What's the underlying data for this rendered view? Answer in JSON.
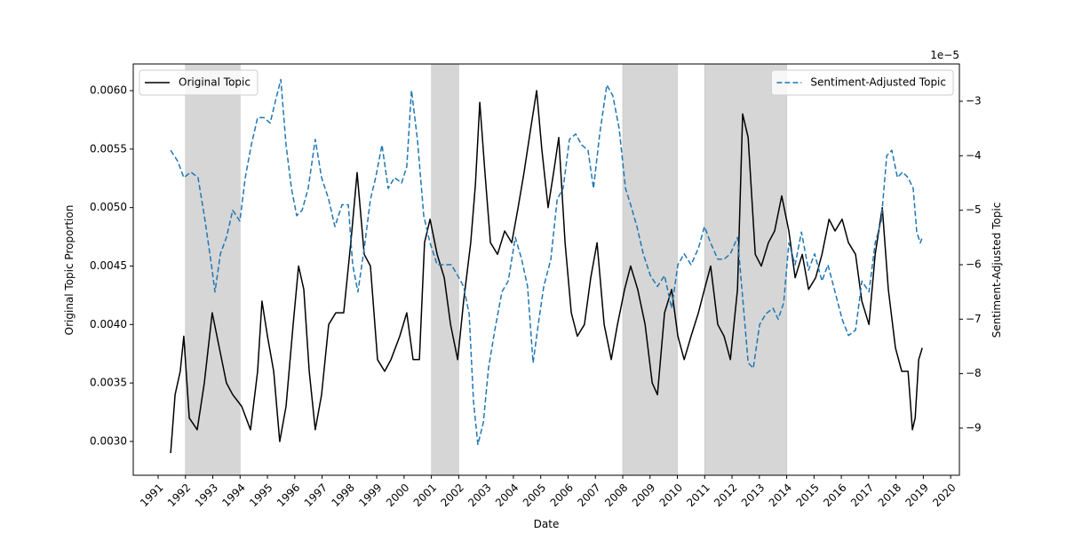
{
  "chart_data": {
    "type": "line",
    "x_label": "Date",
    "y_label": "Original Topic Proportion",
    "y2_label": "Sentiment-Adjusted Topic",
    "y2_offset_label": "1e−5",
    "xlim": [
      1990.09,
      2020.32
    ],
    "xticks": [
      1991,
      1992,
      1993,
      1994,
      1995,
      1996,
      1997,
      1998,
      1999,
      2000,
      2001,
      2002,
      2003,
      2004,
      2005,
      2006,
      2007,
      2008,
      2009,
      2010,
      2011,
      2012,
      2013,
      2014,
      2015,
      2016,
      2017,
      2018,
      2019,
      2020
    ],
    "ylim": [
      0.002711,
      0.006228
    ],
    "yticks": [
      {
        "value": 0.003,
        "label": "0.0030"
      },
      {
        "value": 0.0035,
        "label": "0.0035"
      },
      {
        "value": 0.004,
        "label": "0.0040"
      },
      {
        "value": 0.0045,
        "label": "0.0045"
      },
      {
        "value": 0.005,
        "label": "0.0050"
      },
      {
        "value": 0.0055,
        "label": "0.0055"
      },
      {
        "value": 0.006,
        "label": "0.0060"
      }
    ],
    "y2lim": [
      -9.865,
      -2.315
    ],
    "y2ticks": [
      {
        "value": -9,
        "label": "−9"
      },
      {
        "value": -8,
        "label": "−8"
      },
      {
        "value": -7,
        "label": "−7"
      },
      {
        "value": -6,
        "label": "−6"
      },
      {
        "value": -5,
        "label": "−5"
      },
      {
        "value": -4,
        "label": "−4"
      },
      {
        "value": -3,
        "label": "−3"
      }
    ],
    "shaded_spans": [
      [
        1992,
        1994
      ],
      [
        2001,
        2002
      ],
      [
        2008,
        2010
      ],
      [
        2011,
        2014
      ]
    ],
    "shade_color": "#d6d6d6",
    "series": [
      {
        "name": "Original Topic",
        "color": "#000000",
        "dash": false,
        "legend": "upper left",
        "x": [
          1991.46,
          1991.62,
          1991.81,
          1991.94,
          1992.14,
          1992.43,
          1992.69,
          1992.98,
          1993.24,
          1993.5,
          1993.73,
          1994.06,
          1994.38,
          1994.64,
          1994.8,
          1995.0,
          1995.23,
          1995.45,
          1995.68,
          1995.94,
          1996.14,
          1996.33,
          1996.53,
          1996.75,
          1996.98,
          1997.24,
          1997.5,
          1997.79,
          1998.05,
          1998.28,
          1998.54,
          1998.77,
          1999.03,
          1999.29,
          1999.52,
          1999.84,
          2000.1,
          2000.33,
          2000.56,
          2000.75,
          2000.95,
          2001.21,
          2001.47,
          2001.7,
          2001.96,
          2002.18,
          2002.44,
          2002.61,
          2002.77,
          2002.96,
          2003.16,
          2003.42,
          2003.68,
          2003.94,
          2004.17,
          2004.39,
          2004.65,
          2004.85,
          2005.04,
          2005.27,
          2005.47,
          2005.66,
          2005.89,
          2006.12,
          2006.34,
          2006.6,
          2006.83,
          2007.06,
          2007.32,
          2007.58,
          2007.81,
          2008.07,
          2008.29,
          2008.55,
          2008.82,
          2009.08,
          2009.27,
          2009.53,
          2009.79,
          2010.02,
          2010.25,
          2010.5,
          2010.77,
          2010.99,
          2011.22,
          2011.48,
          2011.71,
          2011.94,
          2012.2,
          2012.39,
          2012.59,
          2012.85,
          2013.07,
          2013.33,
          2013.56,
          2013.82,
          2014.08,
          2014.31,
          2014.57,
          2014.8,
          2015.06,
          2015.29,
          2015.55,
          2015.77,
          2016.03,
          2016.26,
          2016.52,
          2016.75,
          2017.01,
          2017.24,
          2017.5,
          2017.72,
          2017.98,
          2018.21,
          2018.44,
          2018.6,
          2018.7,
          2018.83,
          2018.96
        ],
        "values": [
          0.0029,
          0.0034,
          0.0036,
          0.0039,
          0.0032,
          0.0031,
          0.0035,
          0.0041,
          0.0038,
          0.0035,
          0.0034,
          0.0033,
          0.0031,
          0.0036,
          0.0042,
          0.0039,
          0.0036,
          0.003,
          0.0033,
          0.004,
          0.0045,
          0.0043,
          0.0036,
          0.0031,
          0.0034,
          0.004,
          0.0041,
          0.0041,
          0.0047,
          0.0053,
          0.0046,
          0.0045,
          0.0037,
          0.0036,
          0.0037,
          0.0039,
          0.0041,
          0.0037,
          0.0037,
          0.0047,
          0.0049,
          0.0046,
          0.0044,
          0.004,
          0.0037,
          0.0042,
          0.0047,
          0.0052,
          0.0059,
          0.0053,
          0.0047,
          0.0046,
          0.0048,
          0.0047,
          0.005,
          0.0053,
          0.0057,
          0.006,
          0.0055,
          0.005,
          0.0053,
          0.0056,
          0.0047,
          0.0041,
          0.0039,
          0.004,
          0.0044,
          0.0047,
          0.004,
          0.0037,
          0.004,
          0.0043,
          0.0045,
          0.0043,
          0.004,
          0.0035,
          0.0034,
          0.0041,
          0.0043,
          0.0039,
          0.0037,
          0.0039,
          0.0041,
          0.0043,
          0.0045,
          0.004,
          0.0039,
          0.0037,
          0.0043,
          0.0058,
          0.0056,
          0.0046,
          0.0045,
          0.0047,
          0.0048,
          0.0051,
          0.0048,
          0.0044,
          0.0046,
          0.0043,
          0.0044,
          0.0046,
          0.0049,
          0.0048,
          0.0049,
          0.0047,
          0.0046,
          0.0042,
          0.004,
          0.0046,
          0.005,
          0.0043,
          0.0038,
          0.0036,
          0.0036,
          0.0031,
          0.0032,
          0.0037,
          0.0038
        ]
      },
      {
        "name": "Sentiment-Adjusted Topic",
        "color": "#1f77b4",
        "dash": true,
        "axis": "y2",
        "legend": "upper right",
        "x": [
          1991.46,
          1991.72,
          1991.94,
          1992.2,
          1992.46,
          1992.69,
          1992.95,
          1993.08,
          1993.28,
          1993.5,
          1993.73,
          1993.99,
          1994.19,
          1994.41,
          1994.64,
          1994.87,
          1995.1,
          1995.29,
          1995.49,
          1995.68,
          1995.88,
          1996.07,
          1996.27,
          1996.49,
          1996.75,
          1996.98,
          1997.24,
          1997.47,
          1997.73,
          1997.96,
          1998.12,
          1998.31,
          1998.54,
          1998.77,
          1998.96,
          1999.19,
          1999.42,
          1999.65,
          1999.91,
          2000.1,
          2000.27,
          2000.49,
          2000.72,
          2000.95,
          2001.21,
          2001.47,
          2001.73,
          2001.96,
          2002.18,
          2002.38,
          2002.54,
          2002.7,
          2002.9,
          2003.09,
          2003.32,
          2003.58,
          2003.81,
          2004.07,
          2004.3,
          2004.52,
          2004.72,
          2004.91,
          2005.11,
          2005.37,
          2005.6,
          2005.82,
          2006.05,
          2006.28,
          2006.5,
          2006.73,
          2006.93,
          2007.16,
          2007.42,
          2007.64,
          2007.87,
          2008.1,
          2008.29,
          2008.52,
          2008.75,
          2009.01,
          2009.27,
          2009.53,
          2009.79,
          2010.02,
          2010.25,
          2010.5,
          2010.77,
          2010.99,
          2011.22,
          2011.48,
          2011.71,
          2011.94,
          2012.2,
          2012.39,
          2012.59,
          2012.78,
          2013.01,
          2013.24,
          2013.5,
          2013.69,
          2013.89,
          2014.08,
          2014.31,
          2014.54,
          2014.8,
          2015.02,
          2015.29,
          2015.51,
          2015.77,
          2016.03,
          2016.26,
          2016.52,
          2016.75,
          2017.01,
          2017.24,
          2017.46,
          2017.66,
          2017.85,
          2018.05,
          2018.24,
          2018.44,
          2018.63,
          2018.76,
          2018.89,
          2018.96
        ],
        "values": [
          -3.9,
          -4.1,
          -4.4,
          -4.3,
          -4.4,
          -5.1,
          -6.0,
          -6.5,
          -5.8,
          -5.5,
          -5.0,
          -5.2,
          -4.4,
          -3.8,
          -3.3,
          -3.3,
          -3.4,
          -3.0,
          -2.6,
          -3.8,
          -4.6,
          -5.1,
          -5.0,
          -4.6,
          -3.7,
          -4.4,
          -4.8,
          -5.3,
          -4.9,
          -4.9,
          -6.0,
          -6.5,
          -5.7,
          -4.8,
          -4.4,
          -3.8,
          -4.6,
          -4.4,
          -4.5,
          -4.2,
          -2.8,
          -3.7,
          -5.1,
          -5.6,
          -6.0,
          -6.0,
          -6.0,
          -6.2,
          -6.4,
          -6.9,
          -8.5,
          -9.3,
          -8.9,
          -7.9,
          -7.2,
          -6.5,
          -6.3,
          -5.5,
          -5.9,
          -6.4,
          -7.8,
          -7.1,
          -6.4,
          -5.9,
          -4.8,
          -4.6,
          -3.7,
          -3.6,
          -3.8,
          -3.9,
          -4.6,
          -3.6,
          -2.7,
          -2.9,
          -3.5,
          -4.6,
          -4.9,
          -5.3,
          -5.8,
          -6.2,
          -6.4,
          -6.2,
          -6.8,
          -6.0,
          -5.8,
          -6.0,
          -5.7,
          -5.3,
          -5.6,
          -5.9,
          -5.9,
          -5.8,
          -5.5,
          -6.6,
          -7.8,
          -7.9,
          -7.1,
          -6.9,
          -6.8,
          -7.0,
          -6.7,
          -5.6,
          -6.0,
          -5.4,
          -6.1,
          -5.8,
          -6.3,
          -6.0,
          -6.5,
          -7.0,
          -7.3,
          -7.2,
          -6.3,
          -6.5,
          -5.6,
          -5.2,
          -4.0,
          -3.9,
          -4.4,
          -4.3,
          -4.4,
          -4.6,
          -5.4,
          -5.6,
          -5.5
        ]
      }
    ]
  }
}
